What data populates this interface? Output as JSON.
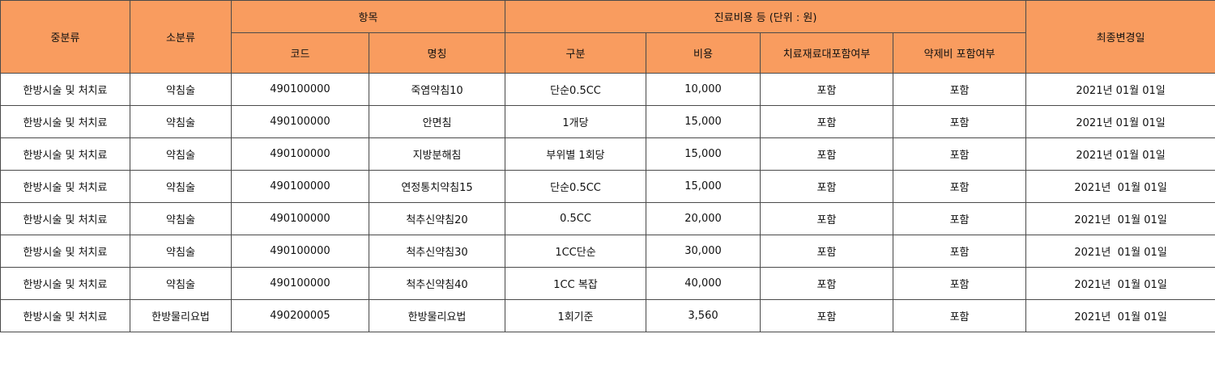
{
  "table": {
    "headers": {
      "major": "중분류",
      "minor": "소분류",
      "item": {
        "title": "항목",
        "columns": [
          "코드",
          "명칭"
        ]
      },
      "cost": {
        "title": "진료비용 등 (단위 : 원)",
        "columns": [
          "구분",
          "비용",
          "치료재료대포함여부",
          "약제비 포함여부"
        ]
      },
      "updated": "최종변경일"
    },
    "rows": [
      [
        "한방시술 및 처치료",
        "약침술",
        "490100000",
        "죽염약침10",
        "단순0.5CC",
        "10,000",
        "포함",
        "포함",
        "2021년 01월 01일"
      ],
      [
        "한방시술 및 처치료",
        "약침술",
        "490100000",
        "안면침",
        "1개당",
        "15,000",
        "포함",
        "포함",
        "2021년 01월 01일"
      ],
      [
        "한방시술 및 처치료",
        "약침술",
        "490100000",
        "지방분해침",
        "부위별 1회당",
        "15,000",
        "포함",
        "포함",
        "2021년 01월 01일"
      ],
      [
        "한방시술 및 처치료",
        "약침술",
        "490100000",
        "연정통치약침15",
        "단순0.5CC",
        "15,000",
        "포함",
        "포함",
        "2021년  01월 01일"
      ],
      [
        "한방시술 및 처치료",
        "약침술",
        "490100000",
        "척추신약침20",
        "0.5CC",
        "20,000",
        "포함",
        "포함",
        "2021년  01월 01일"
      ],
      [
        "한방시술 및 처치료",
        "약침술",
        "490100000",
        "척추신약침30",
        "1CC단순",
        "30,000",
        "포함",
        "포함",
        "2021년  01월 01일"
      ],
      [
        "한방시술 및 처치료",
        "약침술",
        "490100000",
        "척추신약침40",
        "1CC 복잡",
        "40,000",
        "포함",
        "포함",
        "2021년  01월 01일"
      ],
      [
        "한방시술 및 처치료",
        "한방물리요법",
        "490200005",
        "한방물리요법",
        "1회기준",
        "3,560",
        "포함",
        "포함",
        "2021년  01월 01일"
      ]
    ]
  }
}
